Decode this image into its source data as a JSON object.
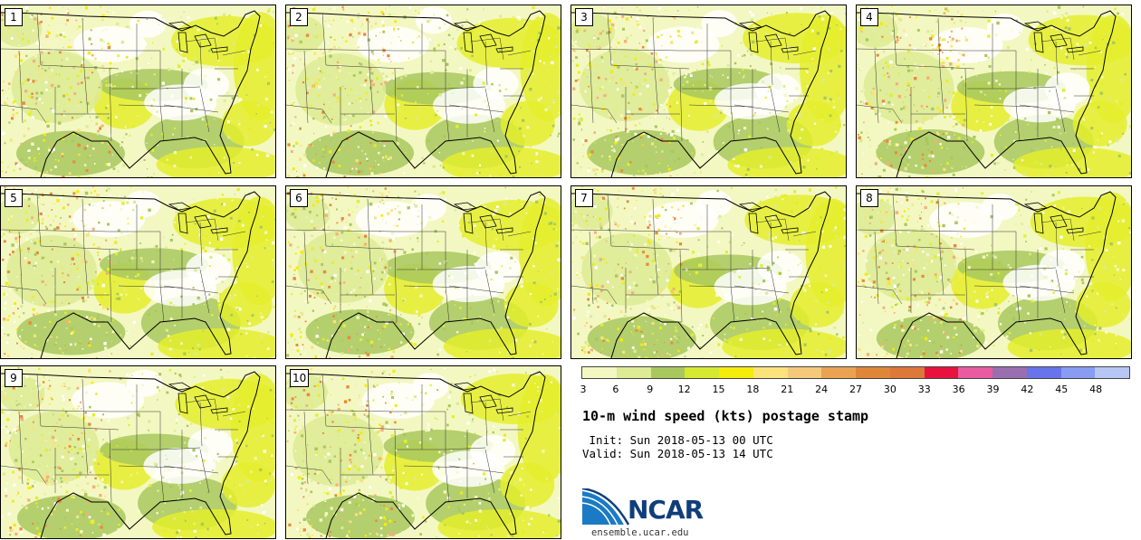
{
  "panels": [
    {
      "label": "1"
    },
    {
      "label": "2"
    },
    {
      "label": "3"
    },
    {
      "label": "4"
    },
    {
      "label": "5"
    },
    {
      "label": "6"
    },
    {
      "label": "7"
    },
    {
      "label": "8"
    },
    {
      "label": "9"
    },
    {
      "label": "10"
    }
  ],
  "colorbar": {
    "ticks": [
      "3",
      "6",
      "9",
      "12",
      "15",
      "18",
      "21",
      "24",
      "27",
      "30",
      "33",
      "36",
      "39",
      "42",
      "45",
      "48"
    ],
    "colors": [
      "#f3f8c2",
      "#dceb94",
      "#a8c85e",
      "#d6e830",
      "#f4ec0a",
      "#fbe27a",
      "#f4c97a",
      "#eaa352",
      "#e08638",
      "#dc7838",
      "#e8123e",
      "#e85ba0",
      "#9a6fb0",
      "#6874ec",
      "#889cf4",
      "#b8c6f4"
    ]
  },
  "title": "10-m wind speed (kts) postage stamp",
  "init": " Init: Sun 2018-05-13 00 UTC",
  "valid": "Valid: Sun 2018-05-13 14 UTC",
  "logo": {
    "text": "NCAR",
    "site": "ensemble.ucar.edu"
  }
}
